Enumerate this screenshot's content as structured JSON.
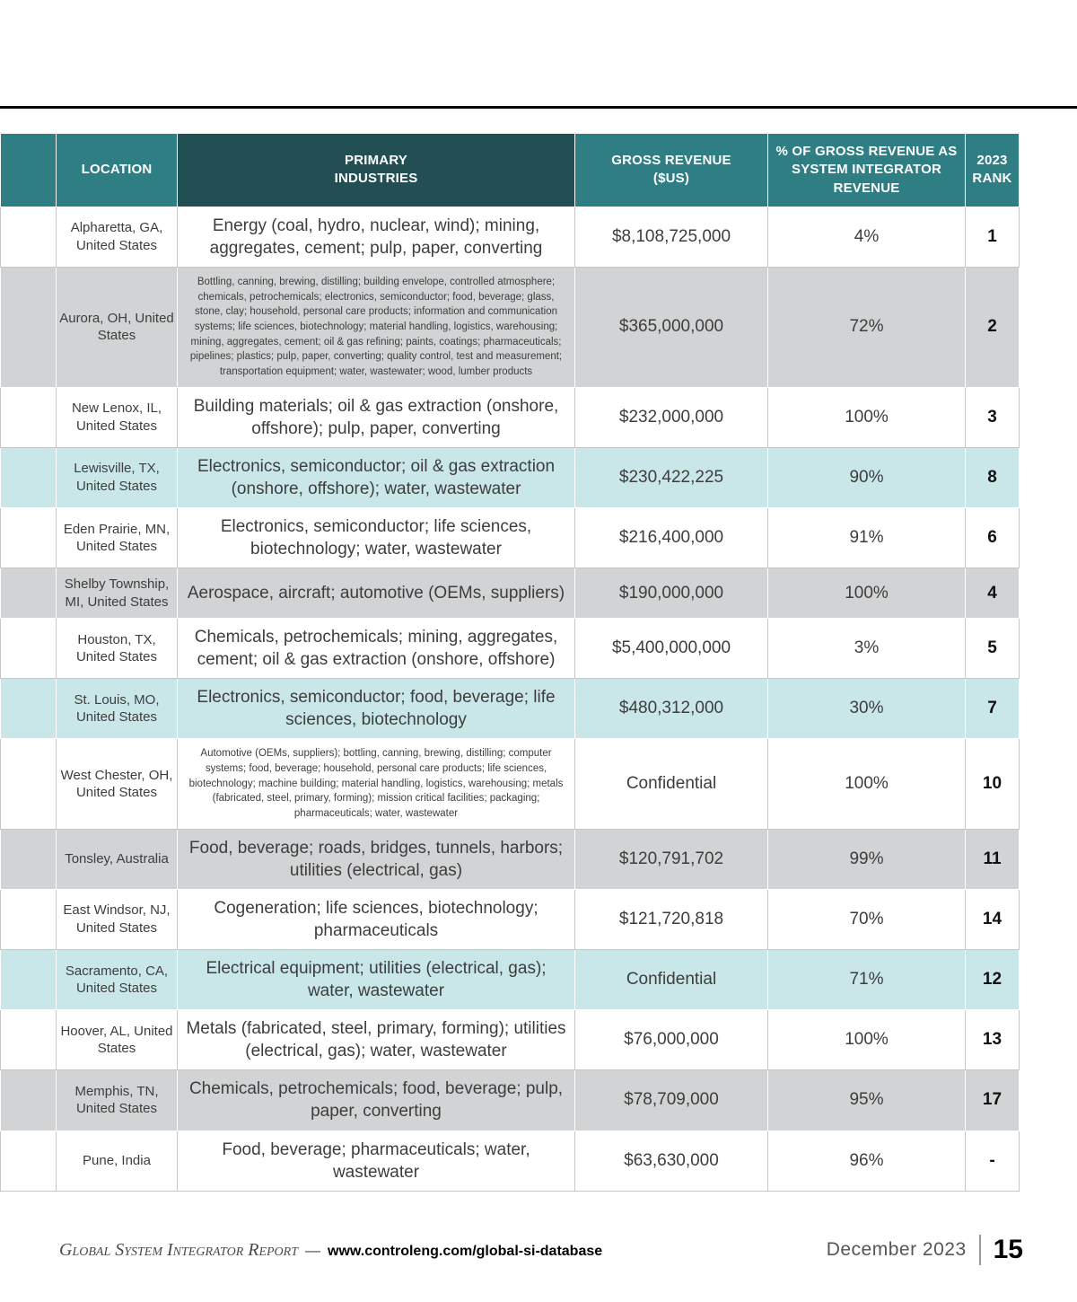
{
  "colors": {
    "header_teal": "#2F7E84",
    "header_dark_teal": "#214F53",
    "row_gray": "#D2D3D4",
    "row_highlight_teal": "#C9E7E9",
    "body_text": "#3d3d3d"
  },
  "table": {
    "headers": {
      "location": "LOCATION",
      "industries": "PRIMARY\nINDUSTRIES",
      "revenue": "GROSS REVENUE\n($US)",
      "pct": "% OF GROSS REVENUE AS\nSYSTEM INTEGRATOR REVENUE",
      "rank": "2023\nRANK"
    },
    "rows": [
      {
        "location": "Alpharetta, GA, United States",
        "industries": "Energy (coal, hydro, nuclear, wind); mining, aggregates, cement; pulp, paper, converting",
        "revenue": "$8,108,725,000",
        "pct": "4%",
        "rank": "1",
        "shade": "white",
        "small": false
      },
      {
        "location": "Aurora, OH, United States",
        "industries": "Bottling, canning, brewing, distilling; building envelope, controlled atmosphere; chemicals, petrochemicals; electronics, semiconductor; food, beverage; glass, stone, clay; household, personal care products; information and communication systems; life sciences, biotechnology; material handling, logistics, warehousing; mining, aggregates, cement; oil & gas refining; paints, coatings; pharmaceuticals; pipelines; plastics; pulp, paper, converting; quality control, test and measurement; transportation equipment; water, wastewater; wood, lumber products",
        "revenue": "$365,000,000",
        "pct": "72%",
        "rank": "2",
        "shade": "gray",
        "small": true
      },
      {
        "location": "New Lenox, IL, United States",
        "industries": "Building materials; oil & gas extraction (onshore, offshore); pulp, paper, converting",
        "revenue": "$232,000,000",
        "pct": "100%",
        "rank": "3",
        "shade": "white",
        "small": false
      },
      {
        "location": "Lewisville, TX, United States",
        "industries": "Electronics, semiconductor; oil & gas extraction (onshore, offshore); water, wastewater",
        "revenue": "$230,422,225",
        "pct": "90%",
        "rank": "8",
        "shade": "teal",
        "small": false
      },
      {
        "location": "Eden Prairie, MN, United States",
        "industries": "Electronics, semiconductor; life sciences, biotechnology; water, wastewater",
        "revenue": "$216,400,000",
        "pct": "91%",
        "rank": "6",
        "shade": "white",
        "small": false
      },
      {
        "location": "Shelby Township, MI, United States",
        "industries": "Aerospace, aircraft; automotive (OEMs, suppliers)",
        "revenue": "$190,000,000",
        "pct": "100%",
        "rank": "4",
        "shade": "gray",
        "small": false
      },
      {
        "location": "Houston, TX, United States",
        "industries": "Chemicals, petrochemicals; mining, aggregates, cement; oil & gas extraction (onshore, offshore)",
        "revenue": "$5,400,000,000",
        "pct": "3%",
        "rank": "5",
        "shade": "white",
        "small": false
      },
      {
        "location": "St. Louis, MO, United States",
        "industries": "Electronics, semiconductor; food, beverage; life sciences, biotechnology",
        "revenue": "$480,312,000",
        "pct": "30%",
        "rank": "7",
        "shade": "teal",
        "small": false
      },
      {
        "location": "West Chester, OH, United States",
        "industries": "Automotive (OEMs, suppliers); bottling, canning, brewing, distilling; computer systems; food, beverage; household, personal care products; life sciences, biotechnology; machine building; material handling, logistics, warehousing; metals (fabricated, steel, primary, forming); mission critical facilities; packaging; pharmaceuticals; water, wastewater",
        "revenue": "Confidential",
        "pct": "100%",
        "rank": "10",
        "shade": "white",
        "small": true
      },
      {
        "location": "Tonsley, Australia",
        "industries": "Food, beverage; roads, bridges, tunnels, harbors; utilities (electrical, gas)",
        "revenue": "$120,791,702",
        "pct": "99%",
        "rank": "11",
        "shade": "gray",
        "small": false
      },
      {
        "location": "East Windsor, NJ, United States",
        "industries": "Cogeneration; life sciences, biotechnology; pharmaceuticals",
        "revenue": "$121,720,818",
        "pct": "70%",
        "rank": "14",
        "shade": "white",
        "small": false
      },
      {
        "location": "Sacramento, CA, United States",
        "industries": "Electrical equipment; utilities (electrical, gas); water, wastewater",
        "revenue": "Confidential",
        "pct": "71%",
        "rank": "12",
        "shade": "teal",
        "small": false
      },
      {
        "location": "Hoover, AL, United States",
        "industries": "Metals (fabricated, steel, primary, forming); utilities (electrical, gas); water, wastewater",
        "revenue": "$76,000,000",
        "pct": "100%",
        "rank": "13",
        "shade": "white",
        "small": false
      },
      {
        "location": "Memphis, TN, United States",
        "industries": "Chemicals, petrochemicals; food, beverage; pulp, paper, converting",
        "revenue": "$78,709,000",
        "pct": "95%",
        "rank": "17",
        "shade": "gray",
        "small": false
      },
      {
        "location": "Pune, India",
        "industries": "Food, beverage; pharmaceuticals; water, wastewater",
        "revenue": "$63,630,000",
        "pct": "96%",
        "rank": "-",
        "shade": "white",
        "small": false
      }
    ]
  },
  "footer": {
    "report_name": "Global System Integrator Report",
    "separator": "—",
    "url": "www.controleng.com/global-si-database",
    "date": "December 2023",
    "page_number": "15"
  }
}
